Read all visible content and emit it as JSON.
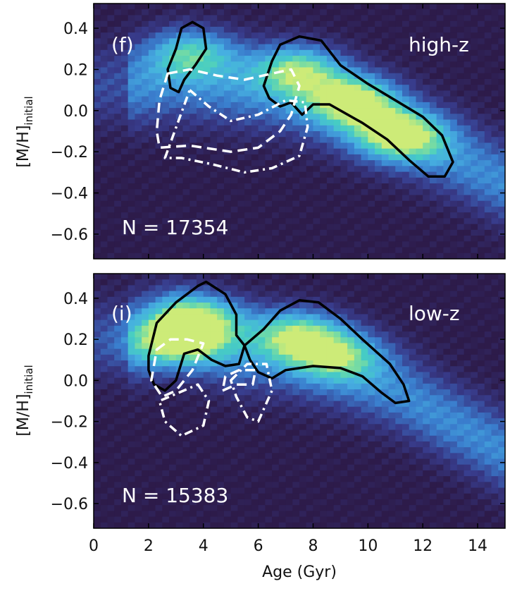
{
  "chart_data": [
    {
      "type": "heatmap",
      "panel_label": "(f)",
      "annotation": "high-z",
      "count_label": "N = 17354",
      "xlabel": "",
      "ylabel_main": "[M/H]",
      "ylabel_sub": "initial",
      "xlim": [
        0,
        15
      ],
      "ylim": [
        -0.72,
        0.52
      ],
      "yticks": [
        0.4,
        0.2,
        0.0,
        -0.2,
        -0.4,
        -0.6
      ],
      "ytick_labels": [
        "0.4",
        "0.2",
        "0.0",
        "−0.2",
        "−0.4",
        "−0.6"
      ],
      "background_color": "#2d1b4a",
      "ridge": {
        "x": [
          1.5,
          3,
          5,
          7,
          9,
          11,
          13,
          15
        ],
        "y": [
          0.12,
          0.15,
          0.12,
          0.08,
          0.0,
          -0.1,
          -0.22,
          -0.35
        ]
      },
      "blobs": [
        {
          "x": 3.6,
          "y": 0.28,
          "level": 0.55
        },
        {
          "x": 7.5,
          "y": 0.2,
          "level": 0.7
        },
        {
          "x": 9.5,
          "y": 0.05,
          "level": 0.8
        },
        {
          "x": 11.2,
          "y": -0.12,
          "level": 0.8
        }
      ],
      "contours": [
        {
          "style": "solid",
          "color": "#000000",
          "points": [
            [
              3.2,
              0.4
            ],
            [
              3.6,
              0.43
            ],
            [
              4.0,
              0.4
            ],
            [
              4.1,
              0.3
            ],
            [
              3.7,
              0.22
            ],
            [
              3.3,
              0.15
            ],
            [
              3.1,
              0.09
            ],
            [
              2.8,
              0.11
            ],
            [
              2.7,
              0.2
            ],
            [
              3.0,
              0.3
            ]
          ]
        },
        {
          "style": "solid",
          "color": "#000000",
          "points": [
            [
              7.5,
              0.36
            ],
            [
              8.3,
              0.34
            ],
            [
              9.0,
              0.22
            ],
            [
              10.0,
              0.13
            ],
            [
              11.0,
              0.05
            ],
            [
              12.0,
              -0.03
            ],
            [
              12.7,
              -0.12
            ],
            [
              13.1,
              -0.25
            ],
            [
              12.8,
              -0.32
            ],
            [
              12.2,
              -0.32
            ],
            [
              11.5,
              -0.24
            ],
            [
              10.7,
              -0.14
            ],
            [
              9.8,
              -0.06
            ],
            [
              8.6,
              0.03
            ],
            [
              8.0,
              0.03
            ],
            [
              7.6,
              -0.02
            ],
            [
              7.2,
              0.04
            ],
            [
              6.8,
              0.02
            ],
            [
              6.4,
              0.06
            ],
            [
              6.2,
              0.12
            ],
            [
              6.5,
              0.24
            ],
            [
              6.8,
              0.32
            ]
          ]
        },
        {
          "style": "dashed",
          "color": "#ffffff",
          "points": [
            [
              2.7,
              0.18
            ],
            [
              3.5,
              0.2
            ],
            [
              4.5,
              0.17
            ],
            [
              5.5,
              0.15
            ],
            [
              6.5,
              0.18
            ],
            [
              7.2,
              0.2
            ],
            [
              7.5,
              0.12
            ],
            [
              7.2,
              -0.02
            ],
            [
              6.8,
              -0.1
            ],
            [
              6.0,
              -0.18
            ],
            [
              5.0,
              -0.2
            ],
            [
              3.5,
              -0.17
            ],
            [
              2.4,
              -0.18
            ],
            [
              2.3,
              -0.1
            ],
            [
              2.4,
              0.05
            ]
          ]
        },
        {
          "style": "dashdot",
          "color": "#ffffff",
          "points": [
            [
              3.5,
              0.1
            ],
            [
              4.2,
              0.02
            ],
            [
              5.0,
              -0.05
            ],
            [
              6.0,
              -0.02
            ],
            [
              7.0,
              0.05
            ],
            [
              7.7,
              0.04
            ],
            [
              7.8,
              -0.08
            ],
            [
              7.5,
              -0.22
            ],
            [
              6.5,
              -0.28
            ],
            [
              5.5,
              -0.3
            ],
            [
              4.3,
              -0.26
            ],
            [
              3.2,
              -0.23
            ],
            [
              2.6,
              -0.23
            ]
          ]
        }
      ]
    },
    {
      "type": "heatmap",
      "panel_label": "(i)",
      "annotation": "low-z",
      "count_label": "N = 15383",
      "xlabel": "Age (Gyr)",
      "ylabel_main": "[M/H]",
      "ylabel_sub": "initial",
      "xlim": [
        0,
        15
      ],
      "ylim": [
        -0.72,
        0.52
      ],
      "xticks": [
        0,
        2,
        4,
        6,
        8,
        10,
        12,
        14
      ],
      "xtick_labels": [
        "0",
        "2",
        "4",
        "6",
        "8",
        "10",
        "12",
        "14"
      ],
      "yticks": [
        0.4,
        0.2,
        0.0,
        -0.2,
        -0.4,
        -0.6
      ],
      "ytick_labels": [
        "0.4",
        "0.2",
        "0.0",
        "−0.2",
        "−0.4",
        "−0.6"
      ],
      "background_color": "#2d1b4a",
      "ridge": {
        "x": [
          1.5,
          3,
          5,
          7,
          9,
          11,
          13,
          15
        ],
        "y": [
          0.2,
          0.25,
          0.15,
          0.12,
          0.05,
          -0.05,
          -0.2,
          -0.35
        ]
      },
      "blobs": [
        {
          "x": 3.0,
          "y": 0.18,
          "level": 0.7
        },
        {
          "x": 3.8,
          "y": 0.3,
          "level": 0.75
        },
        {
          "x": 7.5,
          "y": 0.22,
          "level": 0.7
        },
        {
          "x": 9.0,
          "y": 0.12,
          "level": 0.55
        }
      ],
      "contours": [
        {
          "style": "solid",
          "color": "#000000",
          "points": [
            [
              2.0,
              0.12
            ],
            [
              2.3,
              0.28
            ],
            [
              3.0,
              0.38
            ],
            [
              3.8,
              0.46
            ],
            [
              4.1,
              0.48
            ],
            [
              4.8,
              0.42
            ],
            [
              5.2,
              0.32
            ],
            [
              5.2,
              0.22
            ],
            [
              5.5,
              0.17
            ],
            [
              5.3,
              0.08
            ],
            [
              4.8,
              0.07
            ],
            [
              4.3,
              0.1
            ],
            [
              3.8,
              0.15
            ],
            [
              3.3,
              0.13
            ],
            [
              3.0,
              0.0
            ],
            [
              2.6,
              -0.05
            ],
            [
              2.2,
              -0.02
            ],
            [
              2.0,
              0.05
            ]
          ]
        },
        {
          "style": "solid",
          "color": "#000000",
          "points": [
            [
              5.5,
              0.17
            ],
            [
              6.2,
              0.25
            ],
            [
              6.8,
              0.34
            ],
            [
              7.5,
              0.39
            ],
            [
              8.2,
              0.38
            ],
            [
              9.0,
              0.3
            ],
            [
              9.8,
              0.2
            ],
            [
              10.8,
              0.08
            ],
            [
              11.3,
              -0.02
            ],
            [
              11.5,
              -0.1
            ],
            [
              11.0,
              -0.11
            ],
            [
              10.5,
              -0.06
            ],
            [
              9.8,
              0.02
            ],
            [
              9.0,
              0.06
            ],
            [
              8.0,
              0.07
            ],
            [
              7.0,
              0.05
            ],
            [
              6.5,
              0.01
            ],
            [
              6.0,
              0.04
            ],
            [
              5.7,
              0.1
            ]
          ]
        },
        {
          "style": "dashed",
          "color": "#ffffff",
          "points": [
            [
              2.3,
              0.15
            ],
            [
              2.8,
              0.2
            ],
            [
              3.4,
              0.2
            ],
            [
              4.0,
              0.18
            ],
            [
              3.6,
              0.05
            ],
            [
              3.0,
              -0.05
            ],
            [
              2.5,
              -0.08
            ],
            [
              2.1,
              0.0
            ]
          ]
        },
        {
          "style": "dashed",
          "color": "#ffffff",
          "points": [
            [
              4.7,
              -0.05
            ],
            [
              5.2,
              -0.02
            ],
            [
              5.8,
              -0.02
            ],
            [
              5.9,
              0.05
            ],
            [
              5.3,
              0.05
            ],
            [
              4.8,
              0.02
            ]
          ]
        },
        {
          "style": "dashdot",
          "color": "#ffffff",
          "points": [
            [
              3.8,
              -0.02
            ],
            [
              4.2,
              -0.1
            ],
            [
              4.0,
              -0.22
            ],
            [
              3.2,
              -0.27
            ],
            [
              2.6,
              -0.2
            ],
            [
              2.4,
              -0.1
            ]
          ]
        },
        {
          "style": "dashdot",
          "color": "#ffffff",
          "points": [
            [
              5.0,
              0.0
            ],
            [
              5.6,
              0.08
            ],
            [
              6.3,
              0.08
            ],
            [
              6.5,
              -0.05
            ],
            [
              6.0,
              -0.2
            ],
            [
              5.6,
              -0.18
            ],
            [
              5.2,
              -0.08
            ]
          ]
        }
      ]
    }
  ]
}
